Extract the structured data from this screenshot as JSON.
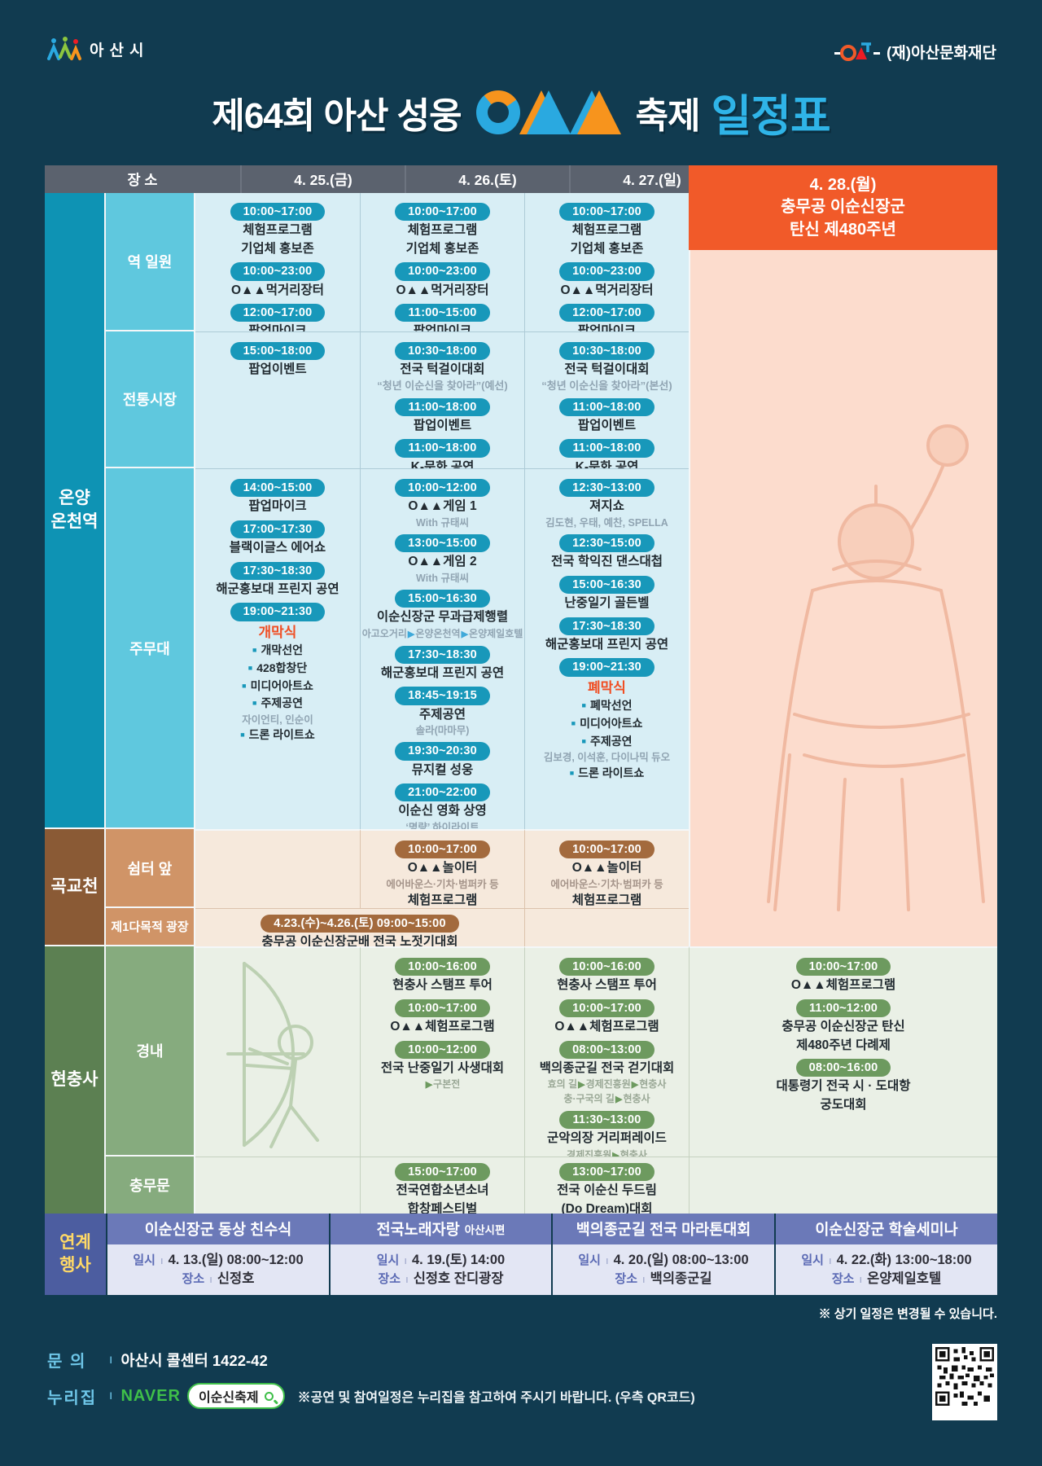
{
  "colors": {
    "bg": "#113b50",
    "accent_orange": "#f15a29",
    "title_blue": "#2fb4e8",
    "pill_blue": "#1898ba",
    "pill_brown": "#a36a3d",
    "pill_green": "#6d9a5f",
    "linked_blue": "#4c5da0",
    "naver_green": "#3fbf49"
  },
  "header": {
    "city": "아산시",
    "foundation": "(재)아산문화재단",
    "t1": "제64회 아산 성웅",
    "t2": "축제",
    "t3": "일정표"
  },
  "table_header": {
    "place": "장 소",
    "d25": "4. 25.(금)",
    "d26": "4. 26.(토)",
    "d27": "4. 27.(일)",
    "d28": "4. 28.(월)\n충무공 이순신장군\n탄신 제480주년"
  },
  "labels": {
    "station": "온양\n온천역",
    "gokgyocheon": "곡교천",
    "hyeonchungsa": "현충사",
    "yeok": "역 일원",
    "jeontong": "전통시장",
    "jumudae": "주무대",
    "swimteo": "쉼터 앞",
    "damok": "제1다목적 광장",
    "gyeongnae": "경내",
    "chungmumun": "충무문"
  },
  "cells": {
    "yeok_d25": {
      "events": [
        {
          "time": "10:00~17:00",
          "lines": [
            {
              "t": "체험프로그램"
            },
            {
              "t": "기업체 홍보존"
            }
          ]
        },
        {
          "time": "10:00~23:00",
          "lines": [
            {
              "t": "O▲▲먹거리장터"
            }
          ]
        },
        {
          "time": "12:00~17:00",
          "lines": [
            {
              "t": "팝업마이크"
            }
          ]
        }
      ]
    },
    "yeok_d26": {
      "events": [
        {
          "time": "10:00~17:00",
          "lines": [
            {
              "t": "체험프로그램"
            },
            {
              "t": "기업체 홍보존"
            }
          ]
        },
        {
          "time": "10:00~23:00",
          "lines": [
            {
              "t": "O▲▲먹거리장터"
            }
          ]
        },
        {
          "time": "11:00~15:00",
          "lines": [
            {
              "t": "팝업마이크"
            }
          ]
        }
      ]
    },
    "yeok_d27": {
      "events": [
        {
          "time": "10:00~17:00",
          "lines": [
            {
              "t": "체험프로그램"
            },
            {
              "t": "기업체 홍보존"
            }
          ]
        },
        {
          "time": "10:00~23:00",
          "lines": [
            {
              "t": "O▲▲먹거리장터"
            }
          ]
        },
        {
          "time": "12:00~17:00",
          "lines": [
            {
              "t": "팝업마이크"
            }
          ]
        }
      ]
    },
    "jeon_d25": {
      "events": [
        {
          "time": "15:00~18:00",
          "lines": [
            {
              "t": "팝업이벤트"
            }
          ]
        }
      ]
    },
    "jeon_d26": {
      "events": [
        {
          "time": "10:30~18:00",
          "lines": [
            {
              "t": "전국 턱걸이대회"
            },
            {
              "t": "“청년 이순신을 찾아라”(예선)",
              "s": "quote"
            }
          ]
        },
        {
          "time": "11:00~18:00",
          "lines": [
            {
              "t": "팝업이벤트"
            }
          ]
        },
        {
          "time": "11:00~18:00",
          "lines": [
            {
              "t": "K-문화 공연"
            }
          ]
        }
      ]
    },
    "jeon_d27": {
      "events": [
        {
          "time": "10:30~18:00",
          "lines": [
            {
              "t": "전국 턱걸이대회"
            },
            {
              "t": "“청년 이순신을 찾아라”(본선)",
              "s": "quote"
            }
          ]
        },
        {
          "time": "11:00~18:00",
          "lines": [
            {
              "t": "팝업이벤트"
            }
          ]
        },
        {
          "time": "11:00~18:00",
          "lines": [
            {
              "t": "K-문화 공연"
            }
          ]
        }
      ]
    },
    "ju_d25": {
      "events": [
        {
          "time": "14:00~15:00",
          "lines": [
            {
              "t": "팝업마이크"
            }
          ]
        },
        {
          "time": "17:00~17:30",
          "lines": [
            {
              "t": "블랙이글스 에어쇼"
            }
          ]
        },
        {
          "time": "17:30~18:30",
          "lines": [
            {
              "t": "해군홍보대 프린지 공연"
            }
          ]
        },
        {
          "time": "19:00~21:30",
          "lines": [
            {
              "t": "개막식",
              "s": "red"
            },
            {
              "t": "개막선언",
              "s": "bullet"
            },
            {
              "t": "428합창단",
              "s": "bullet"
            },
            {
              "t": "미디어아트쇼",
              "s": "bullet"
            },
            {
              "t": "주제공연",
              "s": "bullet"
            },
            {
              "t": "자이언티, 인순이",
              "s": "sub"
            },
            {
              "t": "드론 라이트쇼",
              "s": "bullet"
            }
          ]
        }
      ]
    },
    "ju_d26": {
      "events": [
        {
          "time": "10:00~12:00",
          "lines": [
            {
              "t": "O▲▲게임 1"
            },
            {
              "t": "With 규태씨",
              "s": "sub"
            }
          ]
        },
        {
          "time": "13:00~15:00",
          "lines": [
            {
              "t": "O▲▲게임 2"
            },
            {
              "t": "With 규태씨",
              "s": "sub"
            }
          ]
        },
        {
          "time": "15:00~16:30",
          "lines": [
            {
              "t": "이순신장군 무과급제행렬"
            },
            {
              "t": "아고오거리▶온양온천역▶온양제일호텔",
              "s": "route"
            }
          ]
        },
        {
          "time": "17:30~18:30",
          "lines": [
            {
              "t": "해군홍보대 프린지 공연"
            }
          ]
        },
        {
          "time": "18:45~19:15",
          "lines": [
            {
              "t": "주제공연"
            },
            {
              "t": "솔라(마마무)",
              "s": "sub"
            }
          ]
        },
        {
          "time": "19:30~20:30",
          "lines": [
            {
              "t": "뮤지컬 성웅"
            }
          ]
        },
        {
          "time": "21:00~22:00",
          "lines": [
            {
              "t": "이순신 영화 상영"
            },
            {
              "t": "‘명량’ 하이라이트",
              "s": "sub"
            }
          ]
        }
      ]
    },
    "ju_d27": {
      "events": [
        {
          "time": "12:30~13:00",
          "lines": [
            {
              "t": "져지쇼"
            },
            {
              "t": "김도현, 우태, 예찬, SPELLA",
              "s": "sub"
            }
          ]
        },
        {
          "time": "12:30~15:00",
          "lines": [
            {
              "t": "전국 학익진 댄스대첩"
            }
          ]
        },
        {
          "time": "15:00~16:30",
          "lines": [
            {
              "t": "난중일기 골든벨"
            }
          ]
        },
        {
          "time": "17:30~18:30",
          "lines": [
            {
              "t": "해군홍보대 프린지 공연"
            }
          ]
        },
        {
          "time": "19:00~21:30",
          "lines": [
            {
              "t": "폐막식",
              "s": "red"
            },
            {
              "t": "폐막선언",
              "s": "bullet"
            },
            {
              "t": "미디어아트쇼",
              "s": "bullet"
            },
            {
              "t": "주제공연",
              "s": "bullet"
            },
            {
              "t": "김보경, 이석훈, 다이나믹 듀오",
              "s": "sub"
            },
            {
              "t": "드론 라이트쇼",
              "s": "bullet"
            }
          ]
        }
      ]
    },
    "swim_d26": {
      "events": [
        {
          "time": "10:00~17:00",
          "lines": [
            {
              "t": "O▲▲놀이터"
            },
            {
              "t": "에어바운스·기차·범퍼카 등",
              "s": "sub"
            },
            {
              "t": "체험프로그램"
            }
          ]
        }
      ]
    },
    "swim_d27": {
      "events": [
        {
          "time": "10:00~17:00",
          "lines": [
            {
              "t": "O▲▲놀이터"
            },
            {
              "t": "에어바운스·기차·범퍼카 등",
              "s": "sub"
            },
            {
              "t": "체험프로그램"
            }
          ]
        }
      ]
    },
    "damok_span": {
      "events": [
        {
          "time": "4.23.(수)~4.26.(토) 09:00~15:00",
          "lines": [
            {
              "t": "충무공 이순신장군배 전국 노젓기대회"
            }
          ]
        }
      ]
    },
    "gyeong_d26": {
      "events": [
        {
          "time": "10:00~16:00",
          "lines": [
            {
              "t": "현충사 스탬프 투어"
            }
          ]
        },
        {
          "time": "10:00~17:00",
          "lines": [
            {
              "t": "O▲▲체험프로그램"
            }
          ]
        },
        {
          "time": "10:00~12:00",
          "lines": [
            {
              "t": "전국 난중일기 사생대회"
            },
            {
              "t": "▶구본전",
              "s": "route"
            }
          ]
        }
      ]
    },
    "gyeong_d27": {
      "events": [
        {
          "time": "10:00~16:00",
          "lines": [
            {
              "t": "현충사 스탬프 투어"
            }
          ]
        },
        {
          "time": "10:00~17:00",
          "lines": [
            {
              "t": "O▲▲체험프로그램"
            }
          ]
        },
        {
          "time": "08:00~13:00",
          "lines": [
            {
              "t": "백의종군길 전국 걷기대회"
            },
            {
              "t": "효의 길▶경제진흥원▶현충사",
              "s": "route"
            },
            {
              "t": "충·구국의 길▶현충사",
              "s": "route"
            }
          ]
        },
        {
          "time": "11:30~13:00",
          "lines": [
            {
              "t": "군악의장 거리퍼레이드"
            },
            {
              "t": "경제진흥원▶현충사",
              "s": "route"
            }
          ]
        }
      ]
    },
    "gyeong_d28": {
      "events": [
        {
          "time": "10:00~17:00",
          "lines": [
            {
              "t": "O▲▲체험프로그램"
            }
          ]
        },
        {
          "time": "11:00~12:00",
          "lines": [
            {
              "t": "충무공 이순신장군 탄신"
            },
            {
              "t": "제480주년 다례제"
            }
          ]
        },
        {
          "time": "08:00~16:00",
          "lines": [
            {
              "t": "대통령기 전국 시 · 도대항"
            },
            {
              "t": "궁도대회"
            }
          ]
        }
      ]
    },
    "chung_d26": {
      "events": [
        {
          "time": "15:00~17:00",
          "lines": [
            {
              "t": "전국연합소년소녀"
            },
            {
              "t": "합창페스티벌"
            }
          ]
        }
      ]
    },
    "chung_d27": {
      "events": [
        {
          "time": "13:00~17:00",
          "lines": [
            {
              "t": "전국 이순신 두드림"
            },
            {
              "t": "(Do Dream)대회"
            }
          ]
        }
      ]
    }
  },
  "linked": {
    "label": "연계\n행사",
    "sep": "ı",
    "date_label": "일시",
    "place_label": "장소",
    "items": [
      {
        "title": "이순신장군 동상 친수식",
        "date": "4. 13.(일) 08:00~12:00",
        "place": "신정호"
      },
      {
        "title": "전국노래자랑",
        "suffix": "아산시편",
        "date": "4. 19.(토) 14:00",
        "place": "신정호 잔디광장"
      },
      {
        "title": "백의종군길 전국 마라톤대회",
        "date": "4. 20.(일) 08:00~13:00",
        "place": "백의종군길"
      },
      {
        "title": "이순신장군 학술세미나",
        "date": "4. 22.(화) 13:00~18:00",
        "place": "온양제일호텔"
      }
    ]
  },
  "footer": {
    "note": "※ 상기 일정은 변경될 수 있습니다.",
    "inquiry_label": "문 의",
    "sep": "ı",
    "inquiry_place": "아산시 콜센터",
    "inquiry_phone": "1422-42",
    "web_label": "누리집",
    "naver": "NAVER",
    "search": "이순신축제",
    "notice": "※공연 및 참여일정은 누리집을 참고하여 주시기 바랍니다. (우측 QR코드)"
  }
}
